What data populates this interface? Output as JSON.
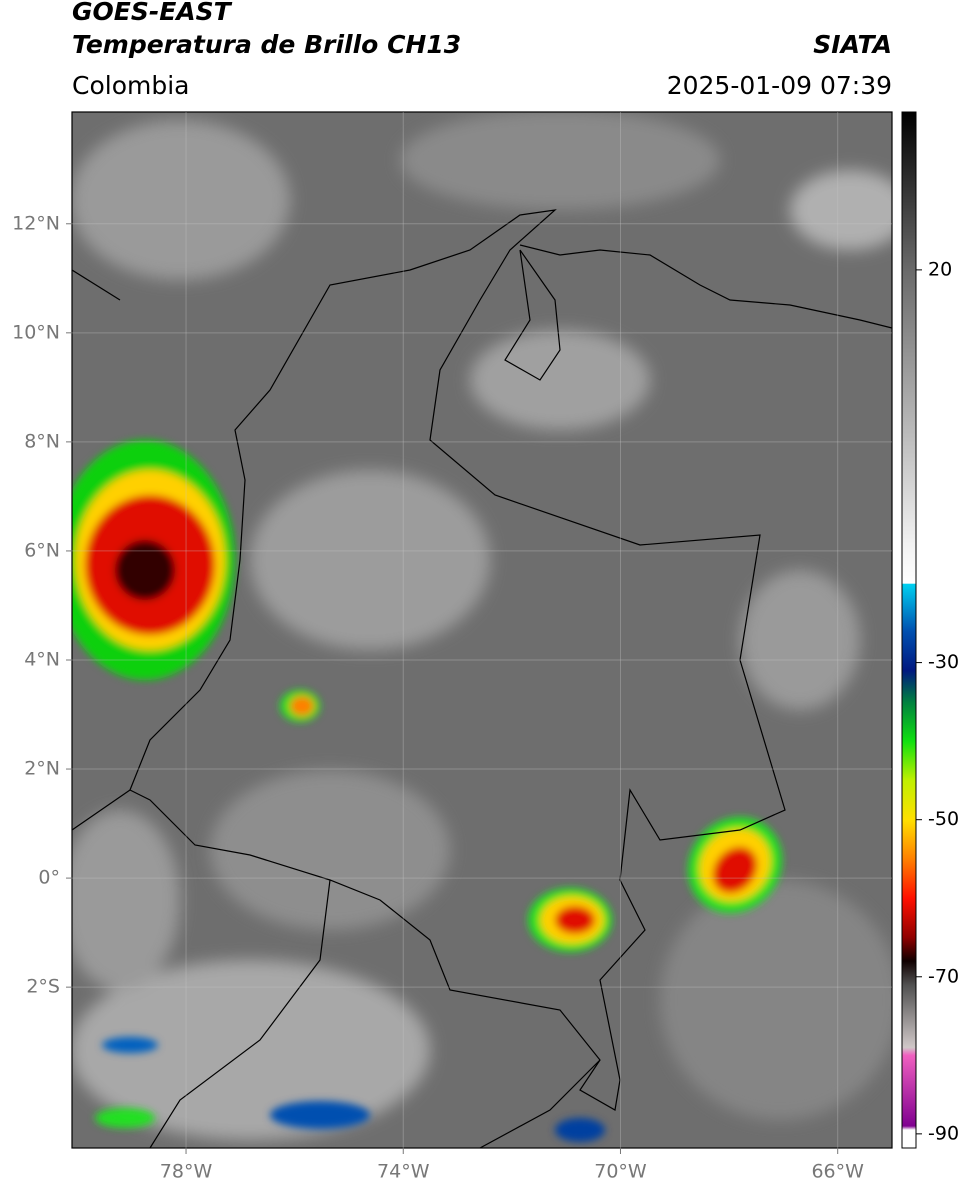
{
  "header": {
    "title": "GOES-EAST",
    "subtitle": "Temperatura de Brillo CH13",
    "source": "SIATA",
    "region": "Colombia",
    "datetime": "2025-01-09 07:39"
  },
  "map": {
    "xlim": [
      -80.1,
      -65.0
    ],
    "ylim": [
      -4.95,
      14.05
    ],
    "xticks": [
      {
        "value": -78,
        "label": "78°W"
      },
      {
        "value": -74,
        "label": "74°W"
      },
      {
        "value": -70,
        "label": "70°W"
      },
      {
        "value": -66,
        "label": "66°W"
      }
    ],
    "yticks": [
      {
        "value": 12,
        "label": "12°N"
      },
      {
        "value": 10,
        "label": "10°N"
      },
      {
        "value": 8,
        "label": "8°N"
      },
      {
        "value": 6,
        "label": "6°N"
      },
      {
        "value": 4,
        "label": "4°N"
      },
      {
        "value": 2,
        "label": "2°N"
      },
      {
        "value": 0,
        "label": "0°"
      },
      {
        "value": -2,
        "label": "2°S"
      }
    ],
    "grid": true
  },
  "colorbar": {
    "lim": [
      -91.8,
      40.1
    ],
    "ticks": [
      20,
      -30,
      -50,
      -70,
      -90
    ],
    "colormap": [
      {
        "value": 40.1,
        "color": "#000000"
      },
      {
        "value": 20,
        "color": "#6a6a6a"
      },
      {
        "value": -15,
        "color": "#f2f2f2"
      },
      {
        "value": -19.9,
        "color": "#ffffff"
      },
      {
        "value": -20,
        "color": "#00d0f0"
      },
      {
        "value": -26,
        "color": "#0050b0"
      },
      {
        "value": -31,
        "color": "#001880"
      },
      {
        "value": -35,
        "color": "#008040"
      },
      {
        "value": -40,
        "color": "#10e010"
      },
      {
        "value": -45,
        "color": "#c0f000"
      },
      {
        "value": -50,
        "color": "#ffe000"
      },
      {
        "value": -55,
        "color": "#ff8000"
      },
      {
        "value": -60,
        "color": "#ff1000"
      },
      {
        "value": -65,
        "color": "#900000"
      },
      {
        "value": -68,
        "color": "#100000"
      },
      {
        "value": -71,
        "color": "#505050"
      },
      {
        "value": -79,
        "color": "#d0c8c8"
      },
      {
        "value": -80,
        "color": "#f060c0"
      },
      {
        "value": -89,
        "color": "#800090"
      },
      {
        "value": -89.5,
        "color": "#ffffff"
      },
      {
        "value": -91.8,
        "color": "#ffffff"
      }
    ]
  }
}
